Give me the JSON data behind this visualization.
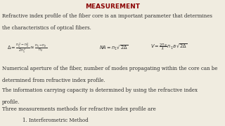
{
  "title": "MEASUREMENT",
  "title_color": "#8B0000",
  "bg_color": "#f0ece0",
  "text_color": "#2c2c2c",
  "body_lines": [
    "Refractive index profile of the fiber core is an important parameter that determines",
    "the characteristics of optical fibers."
  ],
  "para2": [
    "Numerical aperture of the fiber, number of modes propagating within the core can be",
    "determined from refractive index profile."
  ],
  "para3": [
    "The information carrying capacity is determined by using the refractive index",
    "profile."
  ],
  "para4": "Three measurements methods for refractive index profile are",
  "item1": "1. Interferometric Method",
  "fig_width": 3.2,
  "fig_height": 1.8,
  "dpi": 100
}
